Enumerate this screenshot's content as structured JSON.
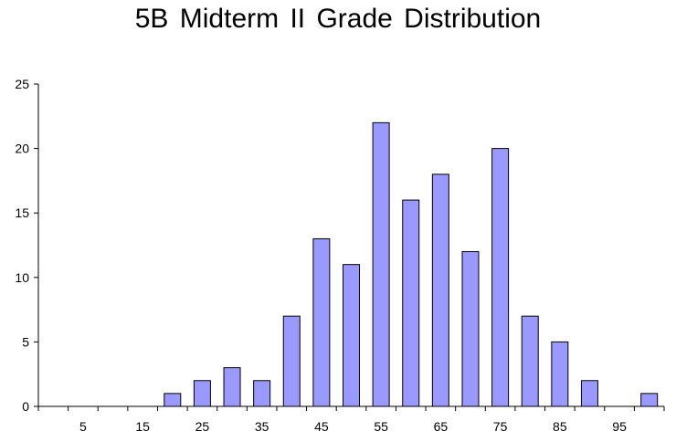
{
  "chart_data": {
    "type": "bar",
    "title": "5B Midterm II Grade Distribution",
    "xlabel": "",
    "ylabel": "",
    "categories": [
      "0",
      "5",
      "10",
      "15",
      "20",
      "25",
      "30",
      "35",
      "40",
      "45",
      "50",
      "55",
      "60",
      "65",
      "70",
      "75",
      "80",
      "85",
      "90",
      "95",
      "100"
    ],
    "x_tick_labels": [
      "5",
      "15",
      "25",
      "35",
      "45",
      "55",
      "65",
      "75",
      "85",
      "95"
    ],
    "values": [
      0,
      0,
      0,
      0,
      1,
      2,
      3,
      2,
      7,
      13,
      11,
      22,
      16,
      18,
      12,
      20,
      7,
      5,
      2,
      0,
      1
    ],
    "ylim": [
      0,
      25
    ],
    "y_ticks": [
      0,
      5,
      10,
      15,
      20,
      25
    ],
    "grid": false,
    "legend": "none",
    "bar_color": "#9999ff",
    "bar_border_color": "#000000"
  }
}
